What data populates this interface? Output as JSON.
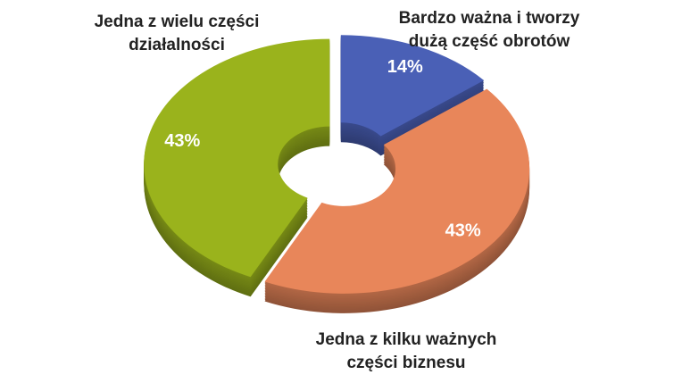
{
  "chart_data": {
    "type": "donut",
    "categories": [
      "Bardzo ważna i tworzy dużą część obrotów",
      "Jedna z kilku ważnych części biznesu",
      "Jedna z wielu części działalności"
    ],
    "values": [
      14,
      43,
      43
    ],
    "value_labels": [
      "14%",
      "43%",
      "43%"
    ],
    "colors": [
      "#4a60b6",
      "#e8865a",
      "#9ab31c"
    ]
  }
}
